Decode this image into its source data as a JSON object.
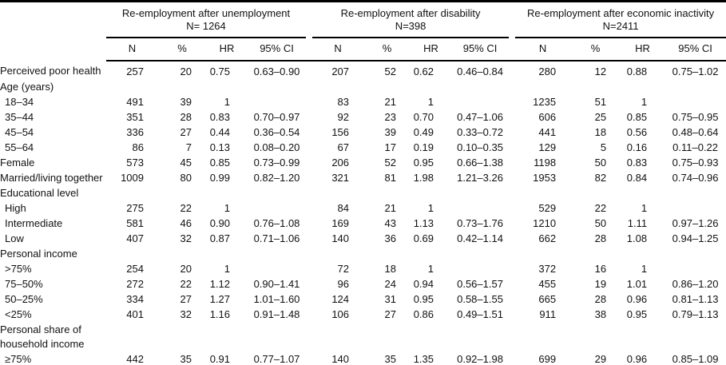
{
  "table": {
    "groups": [
      {
        "title": "Re-employment after unemployment",
        "n_label": "N= 1264"
      },
      {
        "title": "Re-employment after disability",
        "n_label": "N=398"
      },
      {
        "title": "Re-employment after economic inactivity",
        "n_label": "N=2411"
      }
    ],
    "sub_headers": [
      "N",
      "%",
      "HR",
      "95% CI"
    ],
    "rows": [
      {
        "label": "Perceived poor health",
        "type": "data",
        "indent": false,
        "groups": [
          [
            "257",
            "20",
            "0.75",
            "0.63–0.90"
          ],
          [
            "207",
            "52",
            "0.62",
            "0.46–0.84"
          ],
          [
            "280",
            "12",
            "0.88",
            "0.75–1.02"
          ]
        ]
      },
      {
        "label": "Age (years)",
        "type": "section"
      },
      {
        "label": "18–34",
        "type": "data",
        "indent": true,
        "groups": [
          [
            "491",
            "39",
            "1",
            ""
          ],
          [
            "83",
            "21",
            "1",
            ""
          ],
          [
            "1235",
            "51",
            "1",
            ""
          ]
        ]
      },
      {
        "label": "35–44",
        "type": "data",
        "indent": true,
        "groups": [
          [
            "351",
            "28",
            "0.83",
            "0.70–0.97"
          ],
          [
            "92",
            "23",
            "0.70",
            "0.47–1.06"
          ],
          [
            "606",
            "25",
            "0.85",
            "0.75–0.95"
          ]
        ]
      },
      {
        "label": "45–54",
        "type": "data",
        "indent": true,
        "groups": [
          [
            "336",
            "27",
            "0.44",
            "0.36–0.54"
          ],
          [
            "156",
            "39",
            "0.49",
            "0.33–0.72"
          ],
          [
            "441",
            "18",
            "0.56",
            "0.48–0.64"
          ]
        ]
      },
      {
        "label": "55–64",
        "type": "data",
        "indent": true,
        "groups": [
          [
            "86",
            "7",
            "0.13",
            "0.08–0.20"
          ],
          [
            "67",
            "17",
            "0.19",
            "0.10–0.35"
          ],
          [
            "129",
            "5",
            "0.16",
            "0.11–0.22"
          ]
        ]
      },
      {
        "label": "Female",
        "type": "data",
        "indent": false,
        "groups": [
          [
            "573",
            "45",
            "0.85",
            "0.73–0.99"
          ],
          [
            "206",
            "52",
            "0.95",
            "0.66–1.38"
          ],
          [
            "1198",
            "50",
            "0.83",
            "0.75–0.93"
          ]
        ]
      },
      {
        "label": "Married/living together",
        "type": "data",
        "indent": false,
        "groups": [
          [
            "1009",
            "80",
            "0.99",
            "0.82–1.20"
          ],
          [
            "321",
            "81",
            "1.98",
            "1.21–3.26"
          ],
          [
            "1953",
            "82",
            "0.84",
            "0.74–0.96"
          ]
        ]
      },
      {
        "label": "Educational level",
        "type": "section"
      },
      {
        "label": "High",
        "type": "data",
        "indent": true,
        "groups": [
          [
            "275",
            "22",
            "1",
            ""
          ],
          [
            "84",
            "21",
            "1",
            ""
          ],
          [
            "529",
            "22",
            "1",
            ""
          ]
        ]
      },
      {
        "label": "Intermediate",
        "type": "data",
        "indent": true,
        "groups": [
          [
            "581",
            "46",
            "0.90",
            "0.76–1.08"
          ],
          [
            "169",
            "43",
            "1.13",
            "0.73–1.76"
          ],
          [
            "1210",
            "50",
            "1.11",
            "0.97–1.26"
          ]
        ]
      },
      {
        "label": "Low",
        "type": "data",
        "indent": true,
        "groups": [
          [
            "407",
            "32",
            "0.87",
            "0.71–1.06"
          ],
          [
            "140",
            "36",
            "0.69",
            "0.42–1.14"
          ],
          [
            "662",
            "28",
            "1.08",
            "0.94–1.25"
          ]
        ]
      },
      {
        "label": "Personal income",
        "type": "section"
      },
      {
        "label": ">75%",
        "type": "data",
        "indent": true,
        "groups": [
          [
            "254",
            "20",
            "1",
            ""
          ],
          [
            "72",
            "18",
            "1",
            ""
          ],
          [
            "372",
            "16",
            "1",
            ""
          ]
        ]
      },
      {
        "label": "75–50%",
        "type": "data",
        "indent": true,
        "groups": [
          [
            "272",
            "22",
            "1.12",
            "0.90–1.41"
          ],
          [
            "96",
            "24",
            "0.94",
            "0.56–1.57"
          ],
          [
            "455",
            "19",
            "1.01",
            "0.86–1.20"
          ]
        ]
      },
      {
        "label": "50–25%",
        "type": "data",
        "indent": true,
        "groups": [
          [
            "334",
            "27",
            "1.27",
            "1.01–1.60"
          ],
          [
            "124",
            "31",
            "0.95",
            "0.58–1.55"
          ],
          [
            "665",
            "28",
            "0.96",
            "0.81–1.13"
          ]
        ]
      },
      {
        "label": "<25%",
        "type": "data",
        "indent": true,
        "groups": [
          [
            "401",
            "32",
            "1.16",
            "0.91–1.48"
          ],
          [
            "106",
            "27",
            "0.86",
            "0.49–1.51"
          ],
          [
            "911",
            "38",
            "0.95",
            "0.79–1.13"
          ]
        ]
      },
      {
        "label": "Personal share of household income",
        "type": "section"
      },
      {
        "label": "≥75%",
        "type": "data",
        "indent": true,
        "groups": [
          [
            "442",
            "35",
            "0.91",
            "0.77–1.07"
          ],
          [
            "140",
            "35",
            "1.35",
            "0.92–1.98"
          ],
          [
            "699",
            "29",
            "0.96",
            "0.85–1.09"
          ]
        ]
      }
    ]
  }
}
